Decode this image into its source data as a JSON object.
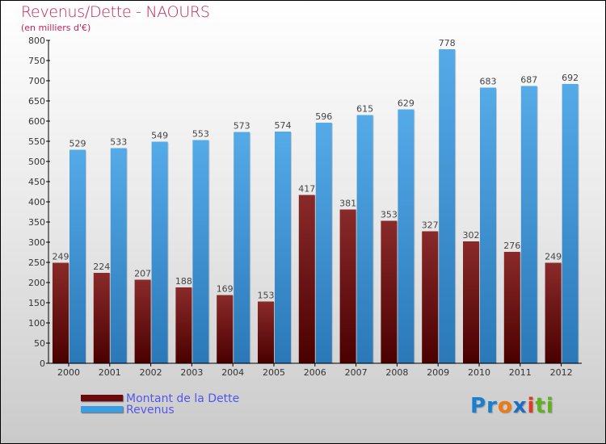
{
  "chart_data": {
    "type": "bar",
    "title": "Revenus/Dette - NAOURS",
    "subtitle": "(en milliers d'€)",
    "xlabel": "",
    "ylabel": "",
    "categories": [
      "2000",
      "2001",
      "2002",
      "2003",
      "2004",
      "2005",
      "2006",
      "2007",
      "2008",
      "2009",
      "2010",
      "2011",
      "2012"
    ],
    "series": [
      {
        "name": "Montant de la Dette",
        "color": "#6b0a0a",
        "values": [
          249,
          224,
          207,
          188,
          169,
          153,
          417,
          381,
          353,
          327,
          302,
          276,
          249
        ]
      },
      {
        "name": "Revenus",
        "color": "#3a9ee4",
        "values": [
          529,
          533,
          549,
          553,
          573,
          574,
          596,
          615,
          629,
          778,
          683,
          687,
          692
        ]
      }
    ],
    "ylim": [
      0,
      800
    ],
    "yticks": [
      0,
      50,
      100,
      150,
      200,
      250,
      300,
      350,
      400,
      450,
      500,
      550,
      600,
      650,
      700,
      750,
      800
    ],
    "grid": false,
    "legend_position": "bottom-left"
  },
  "logo": {
    "text": "Proxiti",
    "parts": [
      "Pr",
      "o",
      "x",
      "i",
      "ti"
    ]
  }
}
